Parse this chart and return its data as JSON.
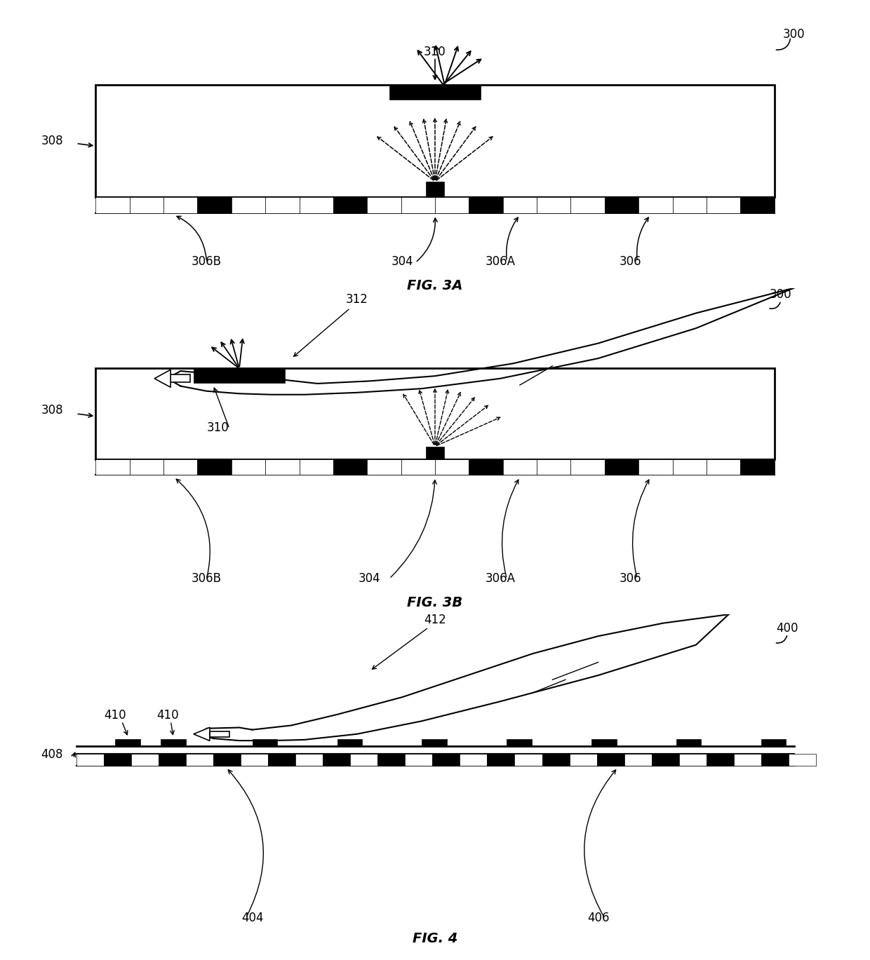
{
  "bg_color": "#ffffff",
  "fig3a": {
    "title": "FIG. 3A",
    "label_300": "300",
    "label_308": "308",
    "label_310": "310",
    "label_304": "304",
    "label_306": "306",
    "label_306A": "306A",
    "label_306B": "306B"
  },
  "fig3b": {
    "title": "FIG. 3B",
    "label_300": "300",
    "label_308": "308",
    "label_310": "310",
    "label_304": "304",
    "label_306": "306",
    "label_306A": "306A",
    "label_306B": "306B",
    "label_312": "312"
  },
  "fig4": {
    "title": "FIG. 4",
    "label_400": "400",
    "label_408": "408",
    "label_410a": "410",
    "label_410b": "410",
    "label_404": "404",
    "label_406": "406",
    "label_412": "412"
  }
}
